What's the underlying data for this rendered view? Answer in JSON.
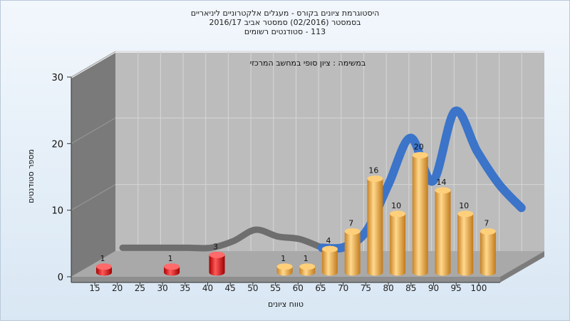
{
  "chart_data": {
    "type": "bar",
    "title_lines": [
      "היסטוגרמת ציונים בקורס - מעגלים אלקטרוניים ליניאריים",
      "בסמסטר  (02/2016)  סמסטר אביב 2016/17",
      "113 - סטודנטים רשומים"
    ],
    "annotation": "במשימה : ציון סופי במחשב המרכזי",
    "xlabel": "טווח ציונים",
    "ylabel": "מספר סטודנטים",
    "ylim": [
      0,
      30
    ],
    "yticks": [
      0,
      10,
      20,
      30
    ],
    "categories": [
      "15",
      "20",
      "25",
      "30",
      "35",
      "40",
      "45",
      "50",
      "55",
      "60",
      "65",
      "70",
      "75",
      "80",
      "85",
      "90",
      "95",
      "100"
    ],
    "values": [
      1,
      0,
      0,
      1,
      0,
      3,
      0,
      0,
      1,
      1,
      4,
      7,
      16,
      10,
      20,
      14,
      10,
      7
    ],
    "failing_color": "#dd1111",
    "passing_color": "#e6a13b",
    "trend": {
      "fail_color": "#6e6e6e",
      "pass_color": "#3b74c9",
      "values": [
        0.5,
        0.5,
        0.5,
        0.5,
        0.5,
        1.5,
        3.2,
        2.2,
        1.8,
        0.5,
        0.6,
        3.0,
        10.0,
        17.0,
        10.5,
        21.0,
        15.0,
        10.0,
        6.5
      ]
    }
  }
}
